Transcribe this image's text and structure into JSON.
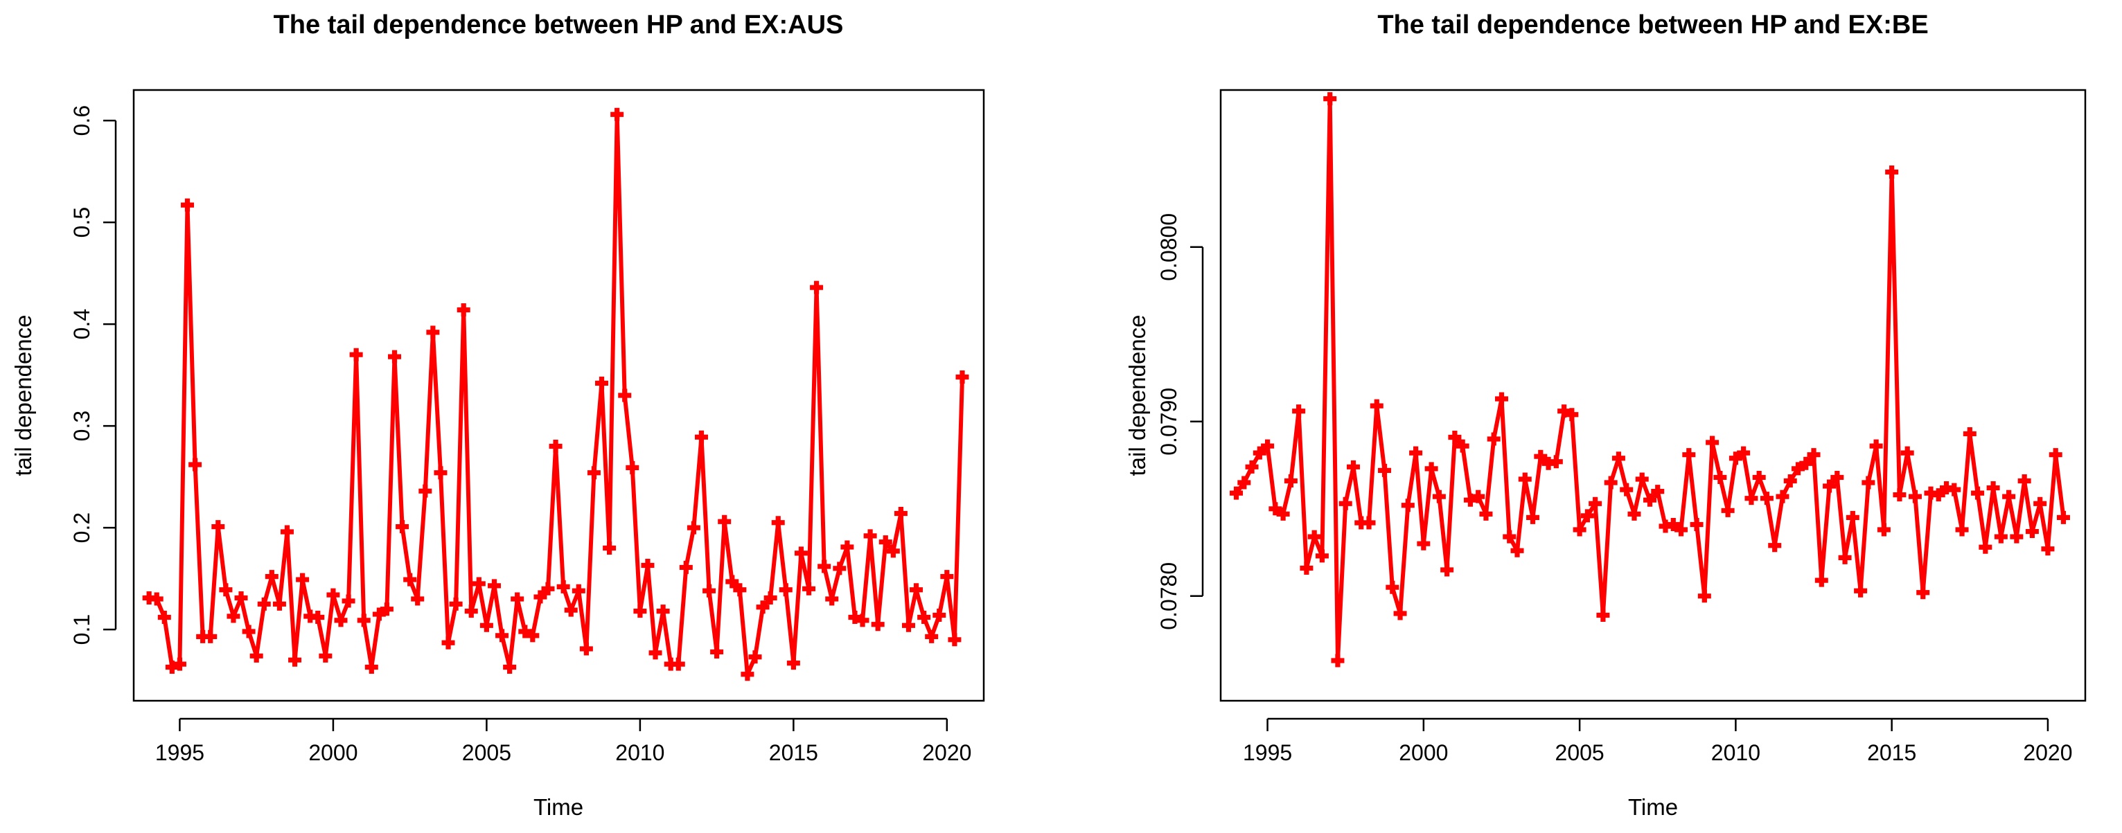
{
  "chart_data": [
    {
      "type": "line",
      "title": "The tail dependence between HP and EX:AUS",
      "xlabel": "Time",
      "ylabel": "tail dependence",
      "xlim": [
        1993.5,
        2021.2
      ],
      "ylim": [
        0.03,
        0.63
      ],
      "xticks": [
        1995,
        2000,
        2005,
        2010,
        2015,
        2020
      ],
      "xtick_labels": [
        "1995",
        "2000",
        "2005",
        "2010",
        "2015",
        "2020"
      ],
      "yticks": [
        0.1,
        0.2,
        0.3,
        0.4,
        0.5,
        0.6
      ],
      "ytick_labels": [
        "0.1",
        "0.2",
        "0.3",
        "0.4",
        "0.5",
        "0.6"
      ],
      "grid": false,
      "legend": "none",
      "color": "#ff0000",
      "series": [
        {
          "x": [
            1994.0,
            1994.25,
            1994.5,
            1994.75,
            1995.0,
            1995.25,
            1995.5,
            1995.75,
            1996.0,
            1996.25,
            1996.5,
            1996.75,
            1997.0,
            1997.25,
            1997.5,
            1997.75,
            1998.0,
            1998.25,
            1998.5,
            1998.75,
            1999.0,
            1999.25,
            1999.5,
            1999.75,
            2000.0,
            2000.25,
            2000.5,
            2000.75,
            2001.0,
            2001.25,
            2001.5,
            2001.75,
            2002.0,
            2002.25,
            2002.5,
            2002.75,
            2003.0,
            2003.25,
            2003.5,
            2003.75,
            2004.0,
            2004.25,
            2004.5,
            2004.75,
            2005.0,
            2005.25,
            2005.5,
            2005.75,
            2006.0,
            2006.25,
            2006.5,
            2006.75,
            2007.0,
            2007.25,
            2007.5,
            2007.75,
            2008.0,
            2008.25,
            2008.5,
            2008.75,
            2009.0,
            2009.25,
            2009.5,
            2009.75,
            2010.0,
            2010.25,
            2010.5,
            2010.75,
            2011.0,
            2011.25,
            2011.5,
            2011.75,
            2012.0,
            2012.25,
            2012.5,
            2012.75,
            2013.0,
            2013.25,
            2013.5,
            2013.75,
            2014.0,
            2014.25,
            2014.5,
            2014.75,
            2015.0,
            2015.25,
            2015.5,
            2015.75,
            2016.0,
            2016.25,
            2016.5,
            2016.75,
            2017.0,
            2017.25,
            2017.5,
            2017.75,
            2018.0,
            2018.25,
            2018.5,
            2018.75,
            2019.0,
            2019.25,
            2019.5,
            2019.75,
            2020.0,
            2020.25,
            2020.5
          ],
          "y": [
            0.131,
            0.13,
            0.112,
            0.063,
            0.066,
            0.517,
            0.262,
            0.093,
            0.093,
            0.201,
            0.139,
            0.113,
            0.131,
            0.098,
            0.074,
            0.125,
            0.152,
            0.125,
            0.196,
            0.07,
            0.149,
            0.113,
            0.112,
            0.074,
            0.134,
            0.109,
            0.128,
            0.37,
            0.109,
            0.063,
            0.115,
            0.12,
            0.368,
            0.201,
            0.149,
            0.13,
            0.236,
            0.392,
            0.254,
            0.087,
            0.125,
            0.414,
            0.118,
            0.145,
            0.104,
            0.143,
            0.094,
            0.063,
            0.13,
            0.098,
            0.094,
            0.132,
            0.14,
            0.28,
            0.142,
            0.119,
            0.138,
            0.081,
            0.254,
            0.342,
            0.18,
            0.606,
            0.33,
            0.259,
            0.118,
            0.163,
            0.077,
            0.118,
            0.066,
            0.066,
            0.161,
            0.2,
            0.289,
            0.138,
            0.078,
            0.206,
            0.147,
            0.139,
            0.056,
            0.073,
            0.122,
            0.131,
            0.205,
            0.139,
            0.067,
            0.175,
            0.14,
            0.436,
            0.162,
            0.13,
            0.16,
            0.181,
            0.112,
            0.109,
            0.192,
            0.105,
            0.186,
            0.177,
            0.214,
            0.104,
            0.139,
            0.112,
            0.093,
            0.114,
            0.152,
            0.09,
            0.348
          ]
        }
      ]
    },
    {
      "type": "line",
      "title": "The tail dependence between HP and EX:BE",
      "xlabel": "Time",
      "ylabel": "tail dependence",
      "xlim": [
        1993.5,
        2021.2
      ],
      "ylim": [
        0.0774,
        0.0809
      ],
      "xticks": [
        1995,
        2000,
        2005,
        2010,
        2015,
        2020
      ],
      "xtick_labels": [
        "1995",
        "2000",
        "2005",
        "2010",
        "2015",
        "2020"
      ],
      "yticks": [
        0.078,
        0.079,
        0.08
      ],
      "ytick_labels": [
        "0.0780",
        "0.0790",
        "0.0800"
      ],
      "grid": false,
      "legend": "none",
      "color": "#ff0000",
      "series": [
        {
          "x": [
            1994.0,
            1994.25,
            1994.5,
            1994.75,
            1995.0,
            1995.25,
            1995.5,
            1995.75,
            1996.0,
            1996.25,
            1996.5,
            1996.75,
            1997.0,
            1997.25,
            1997.5,
            1997.75,
            1998.0,
            1998.25,
            1998.5,
            1998.75,
            1999.0,
            1999.25,
            1999.5,
            1999.75,
            2000.0,
            2000.25,
            2000.5,
            2000.75,
            2001.0,
            2001.25,
            2001.5,
            2001.75,
            2002.0,
            2002.25,
            2002.5,
            2002.75,
            2003.0,
            2003.25,
            2003.5,
            2003.75,
            2004.0,
            2004.25,
            2004.5,
            2004.75,
            2005.0,
            2005.25,
            2005.5,
            2005.75,
            2006.0,
            2006.25,
            2006.5,
            2006.75,
            2007.0,
            2007.25,
            2007.5,
            2007.75,
            2008.0,
            2008.25,
            2008.5,
            2008.75,
            2009.0,
            2009.25,
            2009.5,
            2009.75,
            2010.0,
            2010.25,
            2010.5,
            2010.75,
            2011.0,
            2011.25,
            2011.5,
            2011.75,
            2012.0,
            2012.25,
            2012.5,
            2012.75,
            2013.0,
            2013.25,
            2013.5,
            2013.75,
            2014.0,
            2014.25,
            2014.5,
            2014.75,
            2015.0,
            2015.25,
            2015.5,
            2015.75,
            2016.0,
            2016.25,
            2016.5,
            2016.75,
            2017.0,
            2017.25,
            2017.5,
            2017.75,
            2018.0,
            2018.25,
            2018.5,
            2018.75,
            2019.0,
            2019.25,
            2019.5,
            2019.75,
            2020.0,
            2020.25,
            2020.5
          ],
          "y": [
            0.07859,
            0.07865,
            0.07874,
            0.07882,
            0.07886,
            0.0785,
            0.07847,
            0.07866,
            0.07906,
            0.07816,
            0.07834,
            0.07823,
            0.08085,
            0.07763,
            0.07853,
            0.07874,
            0.07842,
            0.07842,
            0.07909,
            0.07872,
            0.07805,
            0.0779,
            0.07852,
            0.07882,
            0.0783,
            0.07873,
            0.07857,
            0.07815,
            0.07891,
            0.07886,
            0.07855,
            0.07857,
            0.07847,
            0.0789,
            0.07913,
            0.07834,
            0.07826,
            0.07867,
            0.07845,
            0.0788,
            0.07876,
            0.07877,
            0.07906,
            0.07904,
            0.07838,
            0.07846,
            0.07853,
            0.07789,
            0.07865,
            0.07879,
            0.07861,
            0.07847,
            0.07867,
            0.07855,
            0.0786,
            0.0784,
            0.07841,
            0.07838,
            0.07881,
            0.07841,
            0.078,
            0.07888,
            0.07868,
            0.07849,
            0.07879,
            0.07882,
            0.07856,
            0.07868,
            0.07856,
            0.07829,
            0.07857,
            0.07866,
            0.07873,
            0.07876,
            0.07881,
            0.07809,
            0.07863,
            0.07868,
            0.07822,
            0.07845,
            0.07803,
            0.07865,
            0.07886,
            0.07838,
            0.08043,
            0.07858,
            0.07882,
            0.07857,
            0.07802,
            0.07859,
            0.07858,
            0.07862,
            0.07861,
            0.07838,
            0.07893,
            0.07859,
            0.07828,
            0.07862,
            0.07834,
            0.07857,
            0.07834,
            0.07866,
            0.07837,
            0.07853,
            0.07827,
            0.07881,
            0.07845
          ]
        }
      ]
    }
  ]
}
